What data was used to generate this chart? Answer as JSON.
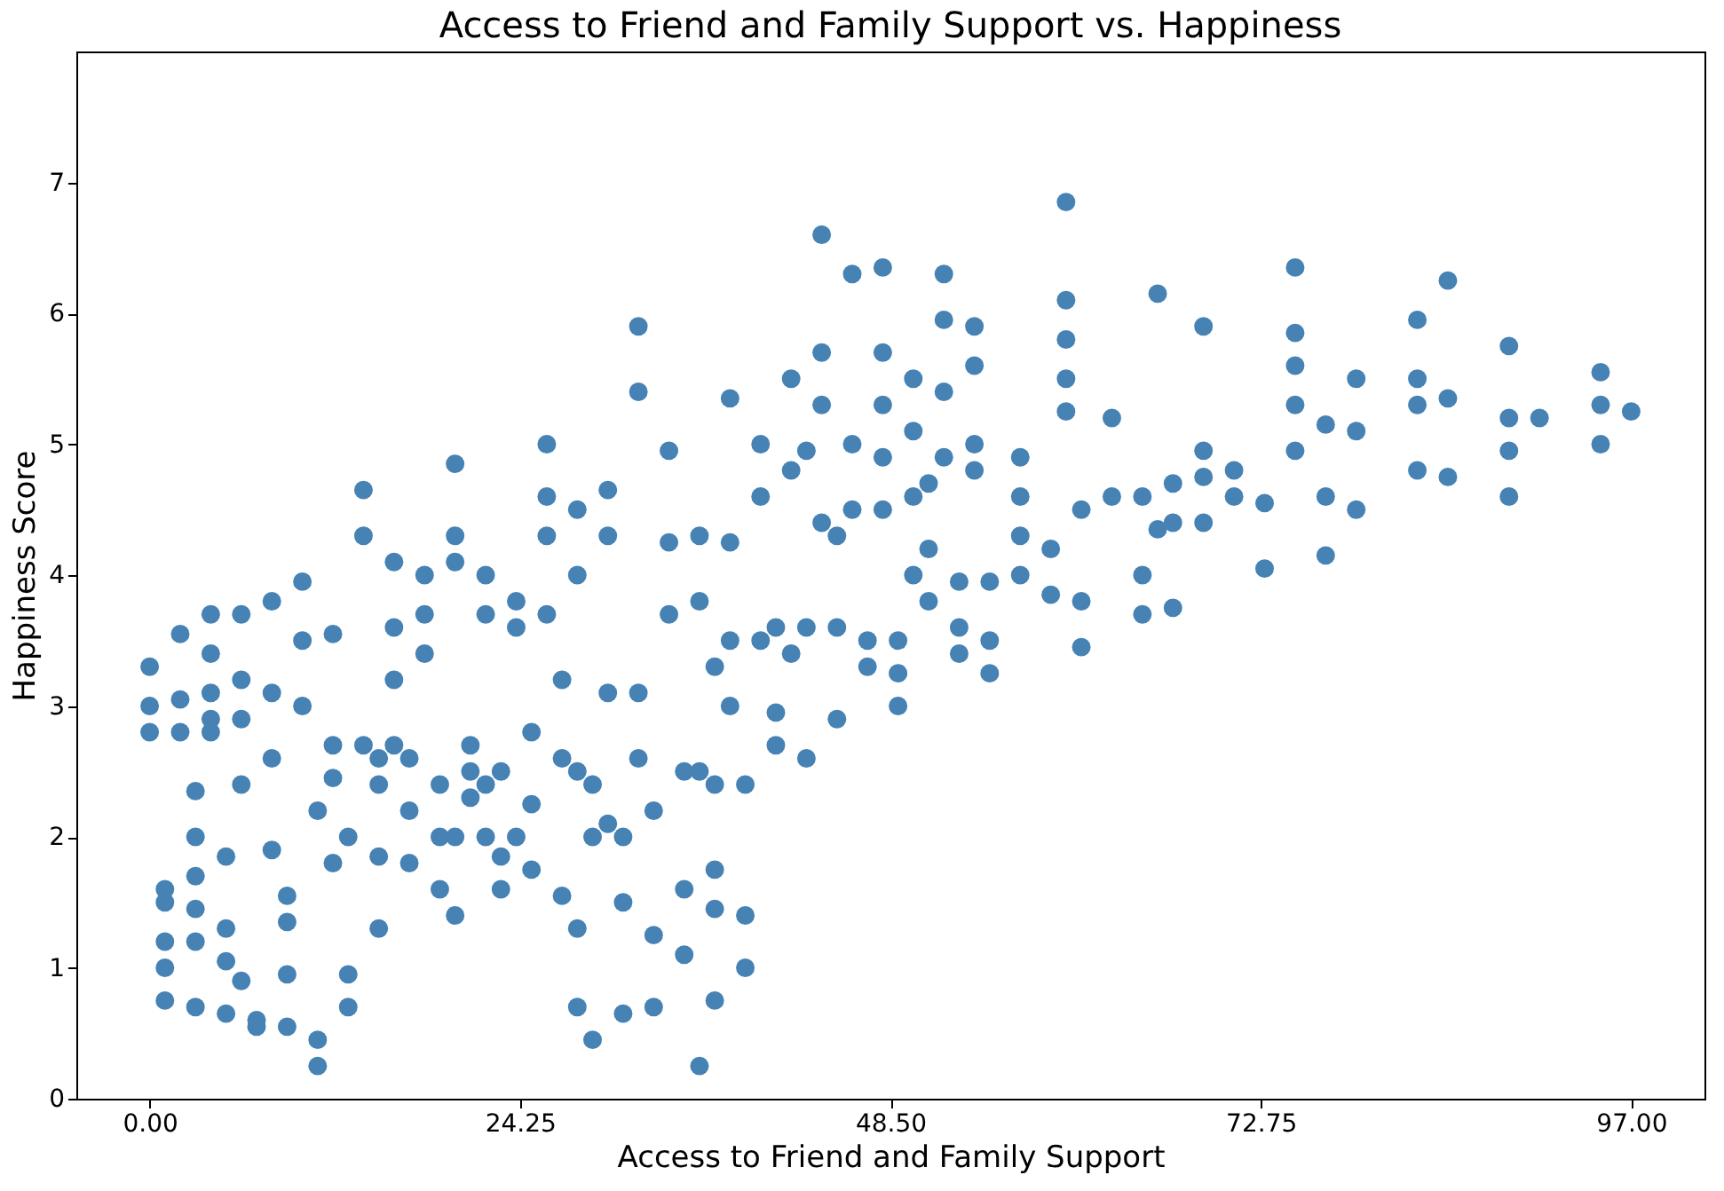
{
  "chart_data": {
    "type": "scatter",
    "title": "Access to Friend and Family Support vs. Happiness",
    "xlabel": "Access to Friend and Family Support",
    "ylabel": "Happiness Score",
    "x": [
      0,
      0,
      0,
      1,
      1,
      1,
      1,
      1,
      2,
      2,
      2,
      3,
      3,
      3,
      3,
      3,
      3,
      4,
      4,
      4,
      4,
      4,
      5,
      5,
      5,
      5,
      6,
      6,
      6,
      6,
      6,
      7,
      7,
      8,
      8,
      8,
      8,
      9,
      9,
      9,
      9,
      10,
      10,
      10,
      11,
      11,
      11,
      12,
      12,
      12,
      12,
      13,
      13,
      13,
      14,
      14,
      14,
      15,
      15,
      15,
      15,
      16,
      16,
      16,
      16,
      17,
      17,
      17,
      18,
      18,
      18,
      19,
      19,
      19,
      20,
      20,
      20,
      20,
      20,
      21,
      21,
      21,
      22,
      22,
      22,
      22,
      23,
      23,
      23,
      24,
      24,
      24,
      25,
      25,
      25,
      26,
      26,
      26,
      26,
      27,
      27,
      27,
      28,
      28,
      28,
      28,
      28,
      29,
      29,
      29,
      30,
      30,
      30,
      30,
      31,
      31,
      31,
      32,
      32,
      32,
      32,
      33,
      33,
      33,
      34,
      34,
      34,
      35,
      35,
      35,
      36,
      36,
      36,
      36,
      37,
      37,
      37,
      37,
      37,
      38,
      38,
      38,
      38,
      39,
      39,
      39,
      40,
      40,
      40,
      41,
      41,
      41,
      42,
      42,
      42,
      43,
      43,
      43,
      44,
      44,
      44,
      44,
      45,
      45,
      45,
      46,
      46,
      46,
      47,
      47,
      48,
      48,
      48,
      48,
      48,
      49,
      49,
      49,
      50,
      50,
      50,
      50,
      51,
      51,
      51,
      52,
      52,
      52,
      52,
      53,
      53,
      53,
      54,
      54,
      54,
      54,
      55,
      55,
      55,
      57,
      57,
      57,
      57,
      59,
      59,
      60,
      60,
      60,
      60,
      60,
      61,
      61,
      61,
      63,
      63,
      65,
      65,
      65,
      66,
      66,
      67,
      67,
      67,
      69,
      69,
      69,
      69,
      71,
      71,
      73,
      73,
      75,
      75,
      75,
      75,
      75,
      77,
      77,
      77,
      79,
      79,
      79,
      83,
      83,
      83,
      83,
      85,
      85,
      85,
      89,
      89,
      89,
      89,
      91,
      95,
      95,
      95,
      97
    ],
    "values": [
      3.3,
      3.0,
      2.8,
      1.6,
      1.5,
      1.2,
      1.0,
      0.75,
      3.55,
      3.05,
      2.8,
      2.35,
      2.0,
      1.7,
      1.45,
      1.2,
      0.7,
      3.7,
      3.4,
      3.1,
      2.9,
      2.8,
      1.85,
      1.3,
      1.05,
      0.65,
      3.7,
      3.2,
      2.9,
      2.4,
      0.9,
      0.6,
      0.55,
      3.8,
      3.1,
      2.6,
      1.9,
      1.55,
      1.35,
      0.95,
      0.55,
      3.95,
      3.5,
      3.0,
      2.2,
      0.45,
      0.25,
      3.55,
      2.7,
      2.45,
      1.8,
      2.0,
      0.95,
      0.7,
      4.65,
      4.3,
      2.7,
      2.6,
      2.4,
      1.85,
      1.3,
      4.1,
      3.6,
      3.2,
      2.7,
      2.6,
      2.2,
      1.8,
      4.0,
      3.7,
      3.4,
      2.4,
      2.0,
      1.6,
      4.85,
      4.3,
      4.1,
      2.0,
      1.4,
      2.7,
      2.5,
      2.3,
      4.0,
      3.7,
      2.4,
      2.0,
      2.5,
      1.85,
      1.6,
      3.8,
      3.6,
      2.0,
      2.8,
      2.25,
      1.75,
      5.0,
      4.6,
      4.3,
      3.7,
      3.2,
      2.6,
      1.55,
      4.5,
      4.0,
      2.5,
      1.3,
      0.7,
      2.4,
      2.0,
      0.45,
      4.65,
      4.3,
      3.1,
      2.1,
      2.0,
      1.5,
      0.65,
      5.9,
      5.4,
      3.1,
      2.6,
      2.2,
      1.25,
      0.7,
      4.95,
      4.25,
      3.7,
      2.5,
      1.6,
      1.1,
      4.3,
      3.8,
      2.5,
      0.25,
      3.3,
      2.4,
      1.75,
      1.45,
      0.75,
      5.35,
      4.25,
      3.5,
      3.0,
      2.4,
      1.4,
      1.0,
      5.0,
      4.6,
      3.5,
      3.6,
      2.95,
      2.7,
      5.5,
      4.8,
      3.4,
      4.95,
      3.6,
      2.6,
      6.6,
      5.7,
      5.3,
      4.4,
      4.3,
      3.6,
      2.9,
      6.3,
      5.0,
      4.5,
      3.5,
      3.3,
      6.35,
      5.7,
      5.3,
      4.9,
      4.5,
      3.5,
      3.25,
      3.0,
      5.5,
      5.1,
      4.6,
      4.0,
      4.7,
      4.2,
      3.8,
      6.3,
      5.95,
      5.4,
      4.9,
      3.95,
      3.6,
      3.4,
      5.9,
      5.6,
      5.0,
      4.8,
      3.95,
      3.5,
      3.25,
      4.9,
      4.6,
      4.3,
      4.0,
      4.2,
      3.85,
      6.85,
      6.1,
      5.8,
      5.5,
      5.25,
      4.5,
      3.8,
      3.45,
      5.2,
      4.6,
      4.6,
      4.0,
      3.7,
      6.15,
      4.35,
      4.7,
      4.4,
      3.75,
      5.9,
      4.95,
      4.75,
      4.4,
      4.8,
      4.6,
      4.55,
      4.05,
      6.35,
      5.85,
      5.6,
      5.3,
      4.95,
      5.15,
      4.6,
      4.15,
      5.5,
      5.1,
      4.5,
      5.95,
      5.5,
      5.3,
      4.8,
      6.25,
      5.35,
      4.75,
      5.75,
      5.2,
      4.95,
      4.6,
      5.2,
      5.55,
      5.3,
      5.0,
      5.25
    ],
    "color": "#4682b4",
    "marker": "circle",
    "grid": false,
    "xlim": [
      -4.8,
      101.8
    ],
    "ylim": [
      0,
      8
    ],
    "xticks": [
      {
        "value": 0,
        "label": "0.00"
      },
      {
        "value": 24.25,
        "label": "24.25"
      },
      {
        "value": 48.5,
        "label": "48.50"
      },
      {
        "value": 72.75,
        "label": "72.75"
      },
      {
        "value": 97,
        "label": "97.00"
      }
    ],
    "yticks": [
      0,
      1,
      2,
      3,
      4,
      5,
      6,
      7
    ]
  }
}
